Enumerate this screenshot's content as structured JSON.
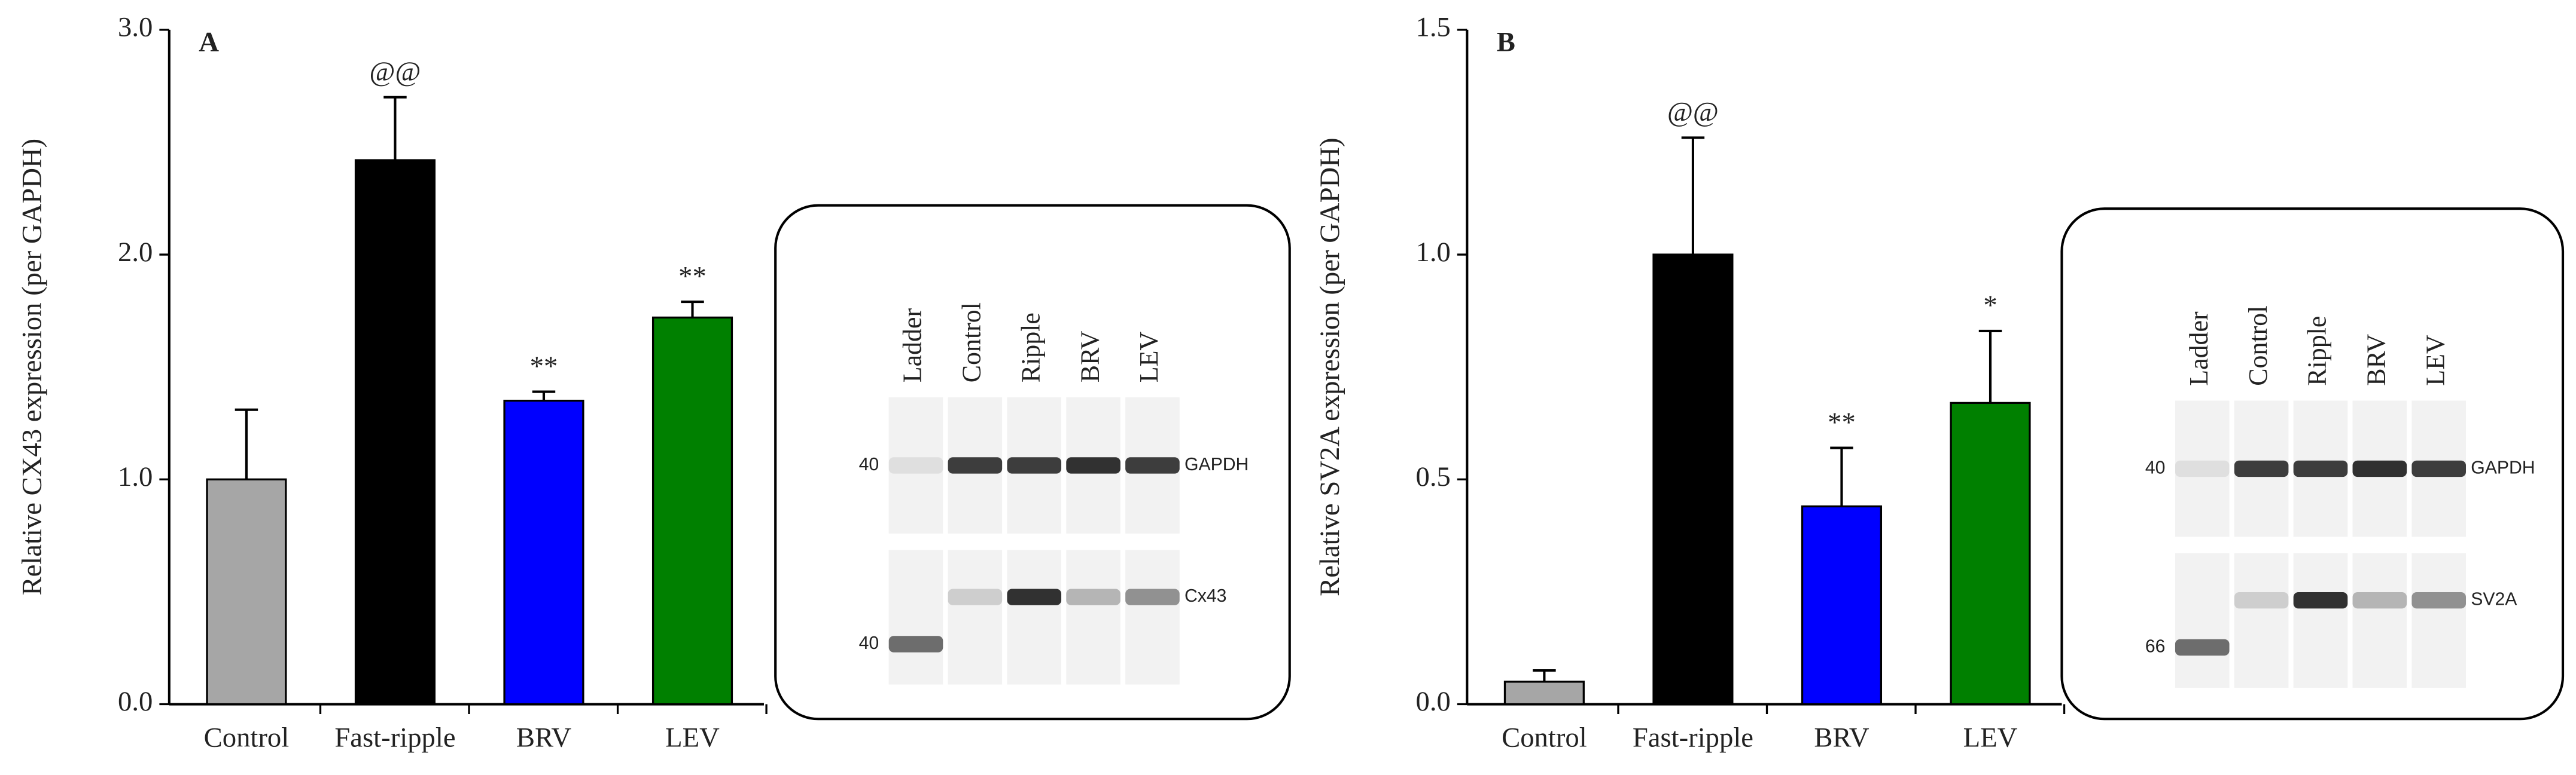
{
  "chart_data": [
    {
      "type": "bar",
      "panel": "A",
      "ylabel": "Relative CX43 expression (per GAPDH)",
      "categories": [
        "Control",
        "Fast-ripple",
        "BRV",
        "LEV"
      ],
      "values": [
        1.0,
        2.42,
        1.35,
        1.72
      ],
      "errors": [
        0.31,
        0.28,
        0.04,
        0.07
      ],
      "colors": [
        "#a6a6a6",
        "#000000",
        "#0000ff",
        "#008000"
      ],
      "annotations": [
        null,
        "@@",
        "**",
        "**"
      ],
      "ylim": [
        0,
        3
      ],
      "yticks": [
        {
          "value": 0,
          "label": "0.0"
        },
        {
          "value": 1,
          "label": "1.0"
        },
        {
          "value": 2,
          "label": "2.0"
        },
        {
          "value": 3,
          "label": "3.0"
        }
      ],
      "inset": {
        "lanes": [
          "Ladder",
          "Control",
          "Ripple",
          "BRV",
          "LEV"
        ],
        "rows": [
          {
            "marker": "40",
            "protein": "GAPDH"
          },
          {
            "marker": "40",
            "protein": "Cx43"
          }
        ]
      }
    },
    {
      "type": "bar",
      "panel": "B",
      "ylabel": "Relative SV2A expression (per GAPDH)",
      "categories": [
        "Control",
        "Fast-ripple",
        "BRV",
        "LEV"
      ],
      "values": [
        0.05,
        1.0,
        0.44,
        0.67
      ],
      "errors": [
        0.025,
        0.26,
        0.13,
        0.16
      ],
      "colors": [
        "#a6a6a6",
        "#000000",
        "#0000ff",
        "#008000"
      ],
      "annotations": [
        null,
        "@@",
        "**",
        "*"
      ],
      "ylim": [
        0,
        1.5
      ],
      "yticks": [
        {
          "value": 0,
          "label": "0.0"
        },
        0.5,
        {
          "value": 1,
          "label": "1.0"
        },
        1.5
      ],
      "inset": {
        "lanes": [
          "Ladder",
          "Control",
          "Ripple",
          "BRV",
          "LEV"
        ],
        "rows": [
          {
            "marker": "40",
            "protein": "GAPDH"
          },
          {
            "marker": "66",
            "protein": "SV2A"
          }
        ]
      }
    }
  ]
}
